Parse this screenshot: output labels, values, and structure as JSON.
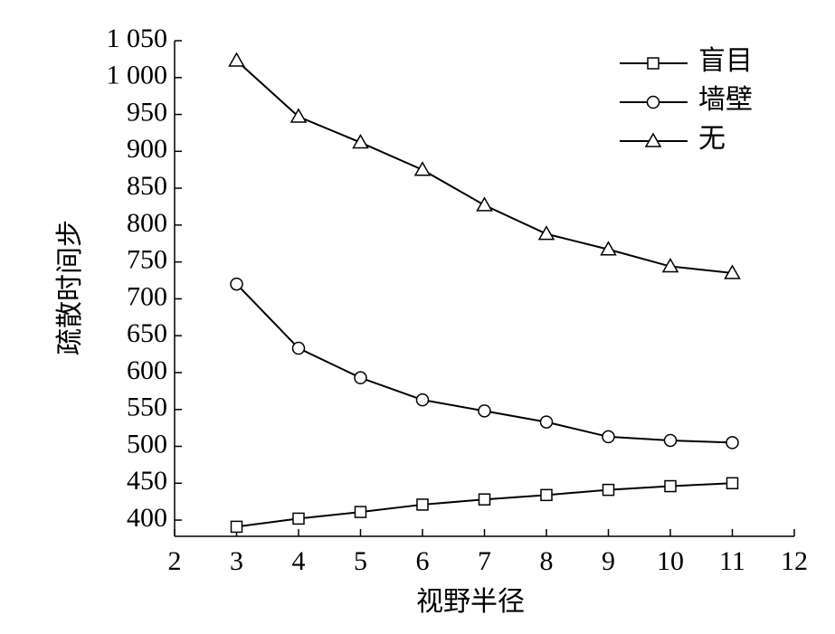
{
  "chart_data": {
    "type": "line",
    "xlabel": "视野半径",
    "ylabel": "疏散时间步",
    "x": [
      3,
      4,
      5,
      6,
      7,
      8,
      9,
      10,
      11
    ],
    "series": [
      {
        "name": "盲目",
        "color": "#000000",
        "marker": "square",
        "values": [
          391,
          402,
          411,
          421,
          428,
          434,
          441,
          446,
          450
        ]
      },
      {
        "name": "墙壁",
        "color": "#000000",
        "marker": "circle",
        "values": [
          720,
          633,
          593,
          563,
          548,
          533,
          513,
          508,
          505
        ]
      },
      {
        "name": "无",
        "color": "#000000",
        "marker": "triangle",
        "values": [
          1023,
          947,
          912,
          875,
          827,
          788,
          767,
          744,
          735
        ]
      }
    ],
    "xlim": [
      2,
      12
    ],
    "xticks": [
      2,
      3,
      4,
      5,
      6,
      7,
      8,
      9,
      10,
      11,
      12
    ],
    "ylim": [
      378,
      1050
    ],
    "yticks": [
      400,
      450,
      500,
      550,
      600,
      650,
      700,
      750,
      800,
      850,
      900,
      950,
      {
        "value": 1000,
        "label": "1 000"
      },
      {
        "value": 1050,
        "label": "1 050"
      }
    ],
    "legend": "upper right",
    "grid": false
  }
}
